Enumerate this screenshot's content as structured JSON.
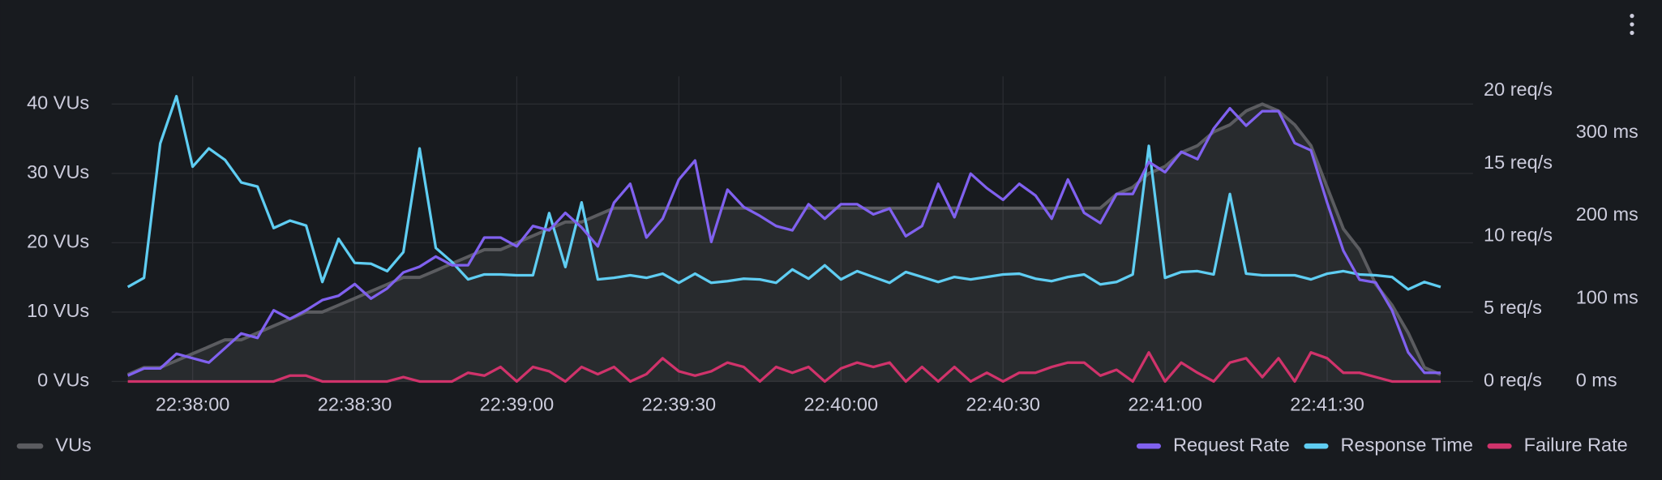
{
  "chart_data": {
    "type": "line",
    "x": [
      "22:37:48",
      "22:37:51",
      "22:37:54",
      "22:37:57",
      "22:38:00",
      "22:38:03",
      "22:38:06",
      "22:38:09",
      "22:38:12",
      "22:38:15",
      "22:38:18",
      "22:38:21",
      "22:38:24",
      "22:38:27",
      "22:38:30",
      "22:38:33",
      "22:38:36",
      "22:38:39",
      "22:38:42",
      "22:38:45",
      "22:38:48",
      "22:38:51",
      "22:38:54",
      "22:38:57",
      "22:39:00",
      "22:39:03",
      "22:39:06",
      "22:39:09",
      "22:39:12",
      "22:39:15",
      "22:39:18",
      "22:39:21",
      "22:39:24",
      "22:39:27",
      "22:39:30",
      "22:39:33",
      "22:39:36",
      "22:39:39",
      "22:39:42",
      "22:39:45",
      "22:39:48",
      "22:39:51",
      "22:39:54",
      "22:39:57",
      "22:40:00",
      "22:40:03",
      "22:40:06",
      "22:40:09",
      "22:40:12",
      "22:40:15",
      "22:40:18",
      "22:40:21",
      "22:40:24",
      "22:40:27",
      "22:40:30",
      "22:40:33",
      "22:40:36",
      "22:40:39",
      "22:40:42",
      "22:40:45",
      "22:40:48",
      "22:40:51",
      "22:40:54",
      "22:40:57",
      "22:41:00",
      "22:41:03",
      "22:41:06",
      "22:41:09",
      "22:41:12",
      "22:41:15",
      "22:41:18",
      "22:41:21",
      "22:41:24",
      "22:41:27",
      "22:41:30",
      "22:41:33",
      "22:41:36",
      "22:41:39",
      "22:41:42",
      "22:41:45",
      "22:41:48",
      "22:41:51"
    ],
    "xlim": [
      "22:37:45",
      "22:41:57"
    ],
    "xticks": [
      "22:38:00",
      "22:38:30",
      "22:39:00",
      "22:39:30",
      "22:40:00",
      "22:40:30",
      "22:41:00",
      "22:41:30"
    ],
    "ylim": [
      0,
      44
    ],
    "yticks": [
      {
        "value": 0,
        "label": "0 VUs"
      },
      {
        "value": 10,
        "label": "10 VUs"
      },
      {
        "value": 20,
        "label": "20 VUs"
      },
      {
        "value": 30,
        "label": "30 VUs"
      },
      {
        "value": 40,
        "label": "40 VUs"
      }
    ],
    "y2lim": [
      0,
      21
    ],
    "y2ticks": [
      {
        "value": 0,
        "label": "0 req/s"
      },
      {
        "value": 5,
        "label": "5 req/s"
      },
      {
        "value": 10,
        "label": "10 req/s"
      },
      {
        "value": 15,
        "label": "15 req/s"
      },
      {
        "value": 20,
        "label": "20 req/s"
      }
    ],
    "y3lim": [
      0,
      368
    ],
    "y3ticks": [
      {
        "value": 0,
        "label": "0 ms"
      },
      {
        "value": 100,
        "label": "100 ms"
      },
      {
        "value": 200,
        "label": "200 ms"
      },
      {
        "value": 300,
        "label": "300 ms"
      }
    ],
    "grid": true,
    "legend": "bottom",
    "series": [
      {
        "name": "VUs",
        "color": "#5b5c60",
        "axis": "y",
        "area": true,
        "values": [
          1,
          2,
          2,
          3,
          4,
          5,
          6,
          6,
          7,
          8,
          9,
          10,
          10,
          11,
          12,
          13,
          14,
          15,
          15,
          16,
          17,
          18,
          19,
          19,
          20,
          21,
          22,
          23,
          23,
          24,
          25,
          25,
          25,
          25,
          25,
          25,
          25,
          25,
          25,
          25,
          25,
          25,
          25,
          25,
          25,
          25,
          25,
          25,
          25,
          25,
          25,
          25,
          25,
          25,
          25,
          25,
          25,
          25,
          25,
          25,
          25,
          27,
          28,
          30,
          31,
          33,
          34,
          36,
          37,
          39,
          40,
          39,
          37,
          34,
          28,
          22,
          19,
          14,
          11,
          7,
          2,
          1
        ]
      },
      {
        "name": "Request Rate",
        "color": "#8061ef",
        "axis": "y2",
        "values": [
          0.4,
          0.9,
          0.9,
          1.9,
          1.6,
          1.3,
          2.3,
          3.3,
          3.0,
          4.9,
          4.3,
          4.9,
          5.6,
          5.9,
          6.7,
          5.7,
          6.4,
          7.5,
          7.9,
          8.6,
          8.0,
          8.0,
          9.9,
          9.9,
          9.3,
          10.7,
          10.4,
          11.6,
          10.6,
          9.3,
          12.3,
          13.6,
          9.9,
          11.2,
          13.9,
          15.2,
          9.6,
          13.2,
          12.0,
          11.4,
          10.7,
          10.4,
          12.2,
          11.2,
          12.2,
          12.2,
          11.5,
          11.9,
          10.0,
          10.7,
          13.6,
          11.3,
          14.3,
          13.3,
          12.5,
          13.6,
          12.8,
          11.2,
          13.9,
          11.6,
          10.9,
          12.9,
          12.9,
          15.1,
          14.4,
          15.8,
          15.3,
          17.4,
          18.8,
          17.6,
          18.6,
          18.6,
          16.4,
          15.9,
          12.3,
          9.0,
          7.0,
          6.8,
          4.9,
          2.0,
          0.6,
          0.6
        ]
      },
      {
        "name": "Response Time",
        "color": "#5fcdf2",
        "axis": "y3",
        "values": [
          114,
          125,
          287,
          344,
          259,
          281,
          267,
          240,
          235,
          185,
          194,
          188,
          120,
          172,
          143,
          142,
          133,
          156,
          281,
          161,
          144,
          123,
          129,
          129,
          128,
          128,
          203,
          138,
          216,
          123,
          125,
          128,
          125,
          130,
          119,
          130,
          119,
          121,
          124,
          123,
          119,
          135,
          124,
          140,
          123,
          133,
          126,
          119,
          132,
          126,
          120,
          126,
          123,
          126,
          129,
          130,
          124,
          121,
          126,
          129,
          117,
          120,
          129,
          284,
          125,
          132,
          133,
          129,
          226,
          130,
          128,
          128,
          128,
          123,
          130,
          133,
          129,
          128,
          126,
          111,
          120,
          114
        ]
      },
      {
        "name": "Failure Rate",
        "color": "#d0336b",
        "axis": "y2",
        "values": [
          0,
          0,
          0,
          0,
          0,
          0,
          0,
          0,
          0,
          0,
          0.4,
          0.4,
          0,
          0,
          0,
          0,
          0,
          0.3,
          0,
          0,
          0,
          0.6,
          0.4,
          1,
          0,
          1,
          0.7,
          0,
          1,
          0.5,
          1,
          0,
          0.5,
          1.6,
          0.7,
          0.4,
          0.7,
          1.3,
          1,
          0,
          1,
          0.6,
          1,
          0,
          0.9,
          1.3,
          1,
          1.3,
          0,
          1,
          0,
          1,
          0,
          0.6,
          0,
          0.6,
          0.6,
          1,
          1.3,
          1.3,
          0.4,
          0.8,
          0,
          2,
          0,
          1.3,
          0.6,
          0,
          1.3,
          1.6,
          0.3,
          1.6,
          0,
          2,
          1.6,
          0.6,
          0.6,
          0.3,
          0,
          0,
          0,
          0
        ]
      }
    ]
  }
}
